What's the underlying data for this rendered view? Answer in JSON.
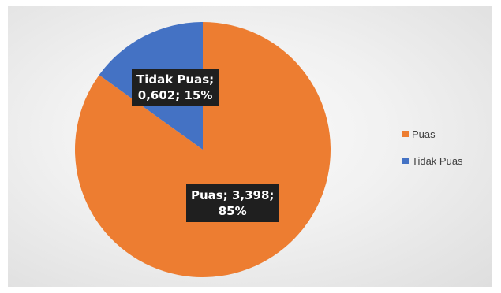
{
  "chart_data": {
    "type": "pie",
    "title": "",
    "categories": [
      "Puas",
      "Tidak Puas"
    ],
    "values": [
      3.398,
      0.602
    ],
    "value_labels": [
      "3,398",
      "0,602"
    ],
    "percent_labels": [
      "85%",
      "15%"
    ],
    "colors": [
      "#ED7D31",
      "#4472C4"
    ],
    "legend_placement": "right",
    "start_angle_deg": 0,
    "direction": "clockwise"
  },
  "labels": {
    "puas": {
      "line1": "Puas; 3,398;",
      "line2": "85%"
    },
    "tidak_puas": {
      "line1": "Tidak Puas;",
      "line2": "0,602; 15%"
    }
  },
  "legend": {
    "items": [
      {
        "label": "Puas",
        "color": "#ED7D31"
      },
      {
        "label": "Tidak Puas",
        "color": "#4472C4"
      }
    ]
  }
}
